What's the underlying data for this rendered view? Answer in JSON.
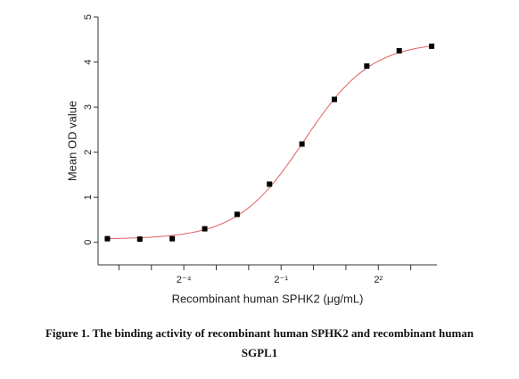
{
  "chart_data": {
    "type": "scatter",
    "x_label": "Recombinant human SPHK2 (μg/mL)",
    "y_label": "Mean OD value",
    "caption": "Figure 1. The binding activity of recombinant human SPHK2 and recombinant human SGPL1",
    "x": [
      0.0122,
      0.0244,
      0.0488,
      0.0977,
      0.1953,
      0.3906,
      0.7813,
      1.5625,
      3.125,
      6.25,
      12.5
    ],
    "values": [
      0.08,
      0.07,
      0.08,
      0.3,
      0.62,
      1.29,
      2.18,
      3.17,
      3.91,
      4.25,
      4.35
    ],
    "color": "#000000",
    "fit": {
      "bottom": 0.07,
      "top": 4.45,
      "ec50": 0.82,
      "hill": 1.4,
      "color": "#e06060"
    },
    "xscale": "log2",
    "xlim": [
      0.01,
      14
    ],
    "xticks": [
      {
        "value": 0.0625,
        "label": "2⁻⁴"
      },
      {
        "value": 0.5,
        "label": "2⁻¹"
      },
      {
        "value": 4,
        "label": "2²"
      }
    ],
    "xminorticks": [
      0.015625,
      0.03125,
      0.125,
      0.25,
      1,
      2,
      8
    ],
    "ylim": [
      -0.5,
      5
    ],
    "yticks": [
      0,
      1,
      2,
      3,
      4,
      5
    ]
  }
}
